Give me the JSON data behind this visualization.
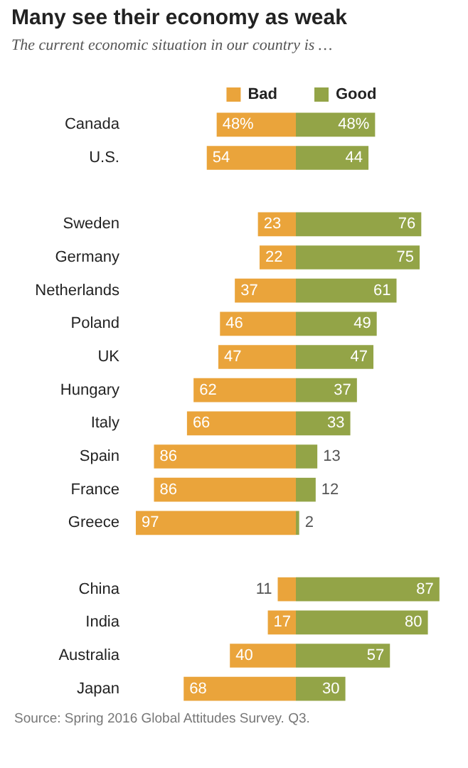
{
  "chart_data": [
    {
      "type": "bar",
      "orientation": "horizontal",
      "title": "Many see their economy as weak",
      "subtitle": "The current economic situation in our country is …",
      "categories": [
        "Canada",
        "U.S.",
        null,
        "Sweden",
        "Germany",
        "Netherlands",
        "Poland",
        "UK",
        "Hungary",
        "Italy",
        "Spain",
        "France",
        "Greece",
        null,
        "China",
        "India",
        "Australia",
        "Japan"
      ],
      "xlim": [
        100,
        0
      ],
      "legend": "top",
      "series": [
        {
          "name": "Bad",
          "color": "#eaa43b",
          "values": [
            48,
            54,
            null,
            23,
            22,
            37,
            46,
            47,
            62,
            66,
            86,
            86,
            97,
            null,
            11,
            17,
            40,
            68
          ],
          "value_labels": [
            "48%",
            "54",
            null,
            "23",
            "22",
            "37",
            "46",
            "47",
            "62",
            "66",
            "86",
            "86",
            "97",
            null,
            "11",
            "17",
            "40",
            "68"
          ]
        }
      ],
      "annotations": [
        "Source: Spring 2016 Global Attitudes Survey. Q3."
      ]
    },
    {
      "type": "bar",
      "orientation": "horizontal",
      "categories": [
        null,
        null,
        null,
        null,
        null,
        null,
        null,
        null,
        null,
        null,
        null,
        null,
        null,
        null,
        null,
        null,
        null,
        null
      ],
      "legend": "top",
      "series": [
        {
          "name": "Good",
          "color": "#93a447",
          "values": [
            48,
            44,
            null,
            76,
            75,
            61,
            49,
            47,
            37,
            33,
            13,
            12,
            2,
            null,
            87,
            80,
            57,
            30
          ],
          "value_labels": [
            "48%",
            "44",
            null,
            "76",
            "75",
            "61",
            "49",
            "47",
            "37",
            "33",
            "13",
            "12",
            "2",
            null,
            "87",
            "80",
            "57",
            "30"
          ]
        }
      ]
    }
  ]
}
